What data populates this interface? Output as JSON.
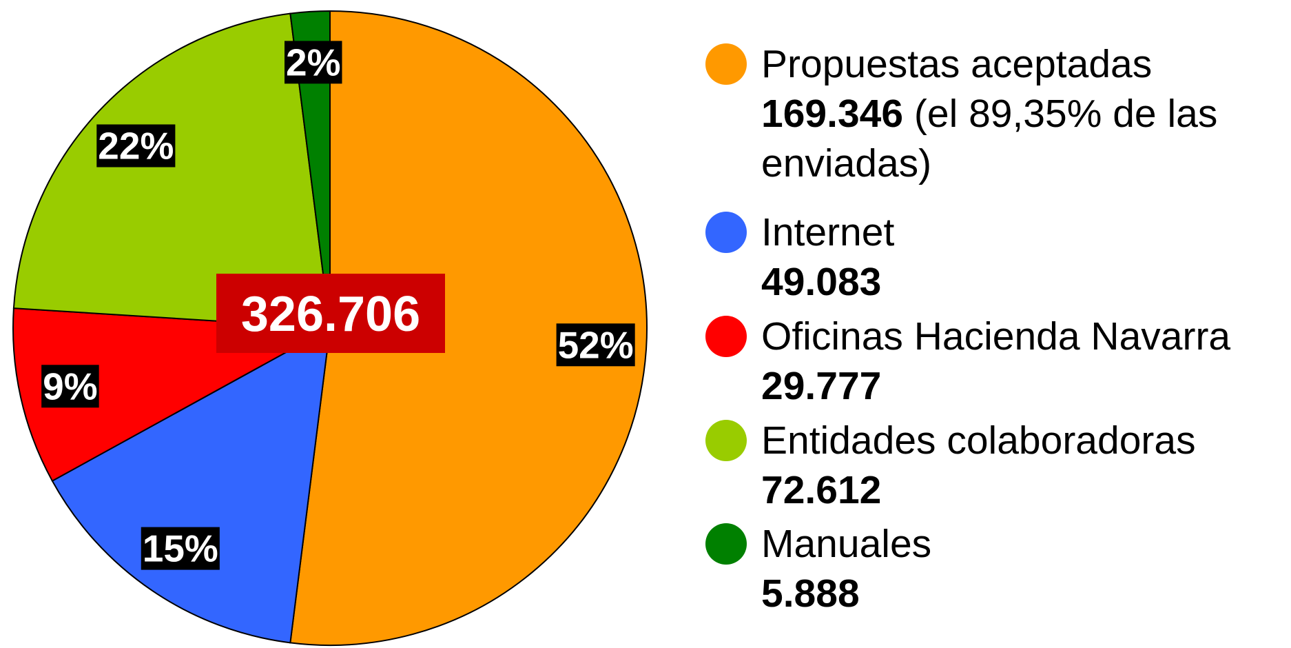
{
  "chart_data": {
    "type": "pie",
    "categories": [
      "Propuestas aceptadas",
      "Internet",
      "Oficinas Hacienda Navarra",
      "Entidades colaboradoras",
      "Manuales"
    ],
    "values": [
      52,
      15,
      9,
      22,
      2
    ],
    "value_labels": [
      "52%",
      "15%",
      "9%",
      "22%",
      "2%"
    ],
    "colors": [
      "#ff9900",
      "#3366ff",
      "#ff0000",
      "#99cc00",
      "#008000"
    ],
    "legend_amounts": [
      "169.346",
      "49.083",
      "29.777",
      "72.612",
      "5.888"
    ],
    "legend_note": "(el 89,35% de las enviadas)",
    "total_label": "326.706"
  }
}
